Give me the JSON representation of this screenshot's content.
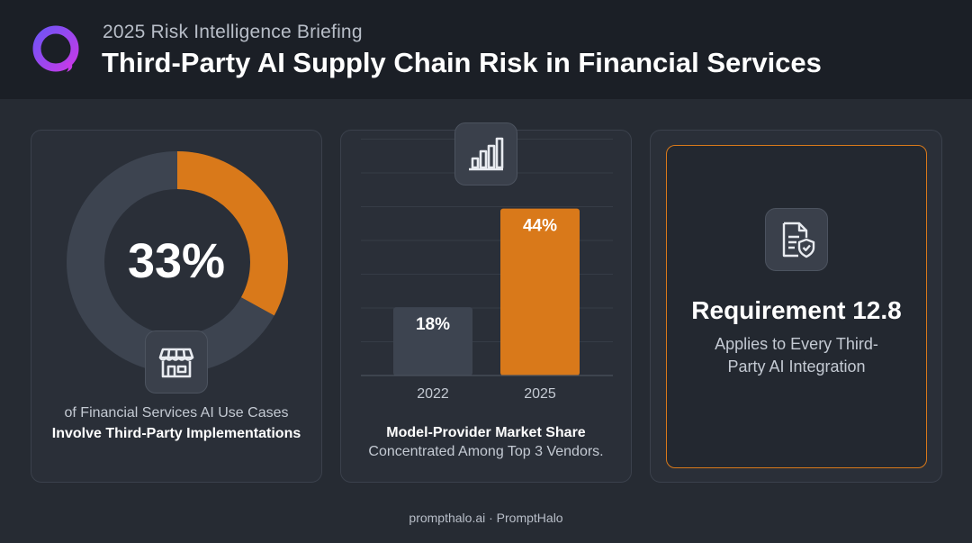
{
  "header": {
    "subtitle": "2025 Risk Intelligence Briefing",
    "title": "Third-Party AI Supply Chain Risk in Financial Services"
  },
  "stat_card": {
    "percentage_label": "33%",
    "percentage_value": 33,
    "line1": "of Financial Services AI Use Cases",
    "line2": "Involve Third-Party Implementations",
    "icon": "storefront-icon"
  },
  "chart_card": {
    "icon": "bar-chart-icon",
    "caption_bold": "Model-Provider Market Share",
    "caption": "Concentrated Among Top 3 Vendors."
  },
  "chart_data": {
    "type": "bar",
    "categories": [
      "2022",
      "2025"
    ],
    "values": [
      18,
      44
    ],
    "data_labels": [
      "18%",
      "44%"
    ],
    "title": "",
    "xlabel": "",
    "ylabel": "",
    "ylim": [
      0,
      56
    ],
    "grid": true
  },
  "requirement_card": {
    "icon": "document-shield-icon",
    "title": "Requirement 12.8",
    "description": "Applies to Every Third-Party AI Integration"
  },
  "footer": {
    "text": "prompthalo.ai · PromptHalo"
  },
  "colors": {
    "accent": "#d9791a",
    "bar_muted": "#3d4450",
    "background": "#262b33",
    "header": "#1b1f26"
  }
}
